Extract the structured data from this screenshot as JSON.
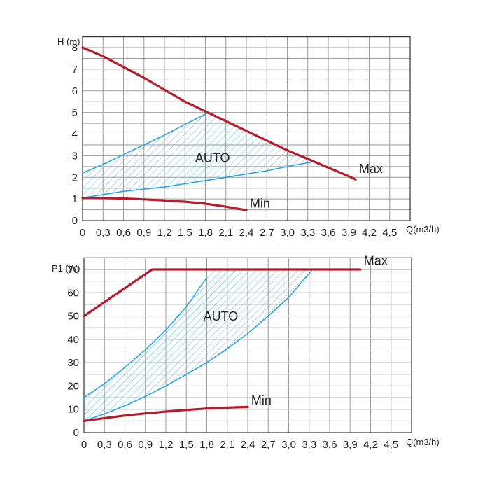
{
  "colors": {
    "max_curve": "#b51c2c",
    "auto_curve": "#29a6de",
    "hatch": "#5cbde6",
    "grid": "#9a9a9a",
    "axis": "#333333"
  },
  "chart_data": [
    {
      "type": "line",
      "ylabel": "H (m)",
      "xlabel": "Q(m3/h)",
      "xlim": [
        0,
        4.8
      ],
      "ylim": [
        0,
        8.5
      ],
      "x_ticks": [
        "0",
        "0,3",
        "0,6",
        "0,9",
        "1,2",
        "1,5",
        "1,8",
        "2,1",
        "2,4",
        "2,7",
        "3,0",
        "3,3",
        "3,6",
        "3,9",
        "4,2",
        "4,5"
      ],
      "y_ticks": [
        "0",
        "1",
        "2",
        "3",
        "4",
        "5",
        "6",
        "7",
        "8"
      ],
      "grid": true,
      "series": [
        {
          "name": "Max",
          "style": "max",
          "x": [
            0,
            0.3,
            0.6,
            0.9,
            1.2,
            1.5,
            1.8,
            2.1,
            2.4,
            2.7,
            3.0,
            3.3,
            3.6,
            3.9,
            4.0
          ],
          "y": [
            8.0,
            7.6,
            7.1,
            6.6,
            6.05,
            5.5,
            5.05,
            4.6,
            4.15,
            3.7,
            3.25,
            2.85,
            2.45,
            2.05,
            1.9
          ]
        },
        {
          "name": "Min",
          "style": "max",
          "x": [
            0,
            0.3,
            0.6,
            0.9,
            1.2,
            1.5,
            1.8,
            2.1,
            2.4
          ],
          "y": [
            1.05,
            1.04,
            1.02,
            0.98,
            0.93,
            0.87,
            0.78,
            0.64,
            0.48
          ]
        },
        {
          "name": "",
          "style": "auto",
          "x": [
            0,
            0.3,
            0.6,
            0.9,
            1.2,
            1.5,
            1.85
          ],
          "y": [
            2.2,
            2.6,
            3.05,
            3.5,
            3.95,
            4.45,
            5.0
          ]
        },
        {
          "name": "",
          "style": "auto",
          "x": [
            0,
            0.3,
            0.6,
            0.9,
            1.2,
            1.5,
            1.8,
            2.1,
            2.4,
            2.7,
            3.0,
            3.35
          ],
          "y": [
            1.05,
            1.2,
            1.35,
            1.45,
            1.55,
            1.7,
            1.85,
            2.0,
            2.15,
            2.3,
            2.5,
            2.7
          ]
        }
      ],
      "auto_region": {
        "x": [
          0,
          0.3,
          0.6,
          0.9,
          1.2,
          1.5,
          1.85,
          2.1,
          2.4,
          2.7,
          3.0,
          3.35,
          3.0,
          2.7,
          2.4,
          2.1,
          1.8,
          1.5,
          1.2,
          0.9,
          0.6,
          0.3,
          0
        ],
        "y": [
          2.2,
          2.6,
          3.05,
          3.5,
          3.95,
          4.45,
          5.0,
          4.6,
          4.15,
          3.7,
          3.25,
          2.7,
          2.5,
          2.3,
          2.15,
          2.0,
          1.85,
          1.7,
          1.55,
          1.45,
          1.35,
          1.2,
          1.05
        ]
      },
      "annotations": [
        {
          "text": "AUTO",
          "x": 1.65,
          "y": 2.7
        },
        {
          "text": "Max",
          "x": 4.05,
          "y": 2.2
        },
        {
          "text": "Min",
          "x": 2.45,
          "y": 0.6
        }
      ]
    },
    {
      "type": "line",
      "ylabel": "P1 (W)",
      "xlabel": "Q(m3/h)",
      "xlim": [
        0,
        4.8
      ],
      "ylim": [
        0,
        75
      ],
      "x_ticks": [
        "0",
        "0,3",
        "0,6",
        "0,9",
        "1,2",
        "1,5",
        "1,8",
        "2,1",
        "2,4",
        "2,7",
        "3,0",
        "3,3",
        "3,6",
        "3,9",
        "4,2",
        "4,5"
      ],
      "y_ticks": [
        "0",
        "10",
        "20",
        "30",
        "40",
        "50",
        "60",
        "70"
      ],
      "grid": true,
      "series": [
        {
          "name": "Max",
          "style": "max",
          "x": [
            0,
            1.0,
            4.05
          ],
          "y": [
            50,
            70,
            70
          ]
        },
        {
          "name": "Min",
          "style": "max",
          "x": [
            0,
            0.3,
            0.6,
            0.9,
            1.2,
            1.5,
            1.8,
            2.1,
            2.4
          ],
          "y": [
            5,
            6.2,
            7.3,
            8.2,
            9.0,
            9.7,
            10.3,
            10.7,
            11.0
          ]
        },
        {
          "name": "",
          "style": "auto",
          "x": [
            0,
            0.3,
            0.6,
            0.9,
            1.2,
            1.5,
            1.8
          ],
          "y": [
            15,
            21,
            28,
            35.5,
            44,
            54,
            66.5
          ]
        },
        {
          "name": "",
          "style": "auto",
          "x": [
            0,
            0.3,
            0.6,
            0.9,
            1.2,
            1.5,
            1.8,
            2.1,
            2.4,
            2.7,
            3.0,
            3.35
          ],
          "y": [
            5,
            8,
            11.5,
            15.5,
            20,
            25,
            30,
            36,
            42.5,
            50,
            58,
            70
          ]
        }
      ],
      "auto_region": {
        "x": [
          0,
          0.3,
          0.6,
          0.9,
          1.2,
          1.5,
          1.85,
          3.35,
          3.0,
          2.7,
          2.4,
          2.1,
          1.8,
          1.5,
          1.2,
          0.9,
          0.6,
          0.3,
          0
        ],
        "y": [
          15,
          21,
          28,
          35.5,
          44,
          54,
          70,
          70,
          58,
          50,
          42.5,
          36,
          30,
          25,
          20,
          15.5,
          11.5,
          8,
          5
        ]
      },
      "annotations": [
        {
          "text": "AUTO",
          "x": 1.75,
          "y": 48
        },
        {
          "text": "Max",
          "x": 4.1,
          "y": 72
        },
        {
          "text": "Min",
          "x": 2.45,
          "y": 12
        }
      ]
    }
  ]
}
